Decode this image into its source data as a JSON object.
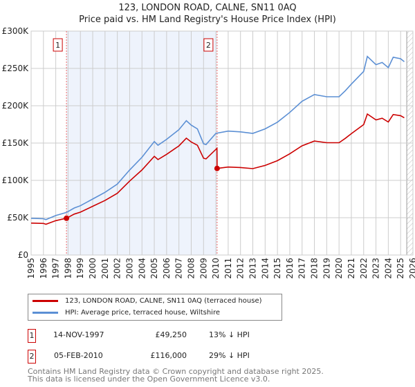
{
  "header": {
    "title": "123, LONDON ROAD, CALNE, SN11 0AQ",
    "subtitle": "Price paid vs. HM Land Registry's House Price Index (HPI)"
  },
  "chart_data": {
    "type": "line",
    "title": "123, LONDON ROAD, CALNE, SN11 0AQ",
    "subtitle": "Price paid vs. HM Land Registry's House Price Index (HPI)",
    "xlim": [
      1995,
      2026
    ],
    "ylim": [
      0,
      300000
    ],
    "x_ticks": [
      1995,
      1996,
      1997,
      1998,
      1999,
      2000,
      2001,
      2002,
      2003,
      2004,
      2005,
      2006,
      2007,
      2008,
      2009,
      2010,
      2011,
      2012,
      2013,
      2014,
      2015,
      2016,
      2017,
      2018,
      2019,
      2020,
      2021,
      2022,
      2023,
      2024,
      2025,
      2026
    ],
    "y_ticks": [
      {
        "v": 0,
        "label": "£0"
      },
      {
        "v": 50000,
        "label": "£50K"
      },
      {
        "v": 100000,
        "label": "£100K"
      },
      {
        "v": 150000,
        "label": "£150K"
      },
      {
        "v": 200000,
        "label": "£200K"
      },
      {
        "v": 250000,
        "label": "£250K"
      },
      {
        "v": 300000,
        "label": "£300K"
      }
    ],
    "grid": true,
    "series": [
      {
        "name": "123, LONDON ROAD, CALNE, SN11 0AQ (terraced house)",
        "color": "#cc0000",
        "x": [
          1995,
          1996,
          1996.2,
          1997,
          1997.87,
          1998.5,
          1999,
          2000,
          2001,
          2002,
          2003,
          2004,
          2005,
          2005.3,
          2006,
          2007,
          2007.6,
          2008,
          2008.5,
          2009,
          2009.2,
          2010.09,
          2010.1,
          2011,
          2012,
          2013,
          2014,
          2015,
          2016,
          2017,
          2018,
          2019,
          2020,
          2020.5,
          2021,
          2022,
          2022.3,
          2023,
          2023.5,
          2024,
          2024.4,
          2025,
          2025.3
        ],
        "y": [
          42800,
          42300,
          41200,
          46000,
          49250,
          54800,
          57400,
          65300,
          73100,
          82700,
          99200,
          114000,
          132200,
          127900,
          134900,
          146200,
          156600,
          151400,
          147000,
          129600,
          128800,
          143000,
          116000,
          117900,
          117200,
          115700,
          120000,
          126400,
          135600,
          146300,
          152700,
          150500,
          150500,
          156200,
          162600,
          174700,
          188900,
          181000,
          183200,
          178200,
          188200,
          186700,
          183900
        ]
      },
      {
        "name": "HPI: Average price, terraced house, Wiltshire",
        "color": "#5b8fd4",
        "x": [
          1995,
          1996,
          1996.2,
          1997,
          1997.87,
          1998.5,
          1999,
          2000,
          2001,
          2002,
          2003,
          2004,
          2005,
          2005.3,
          2006,
          2007,
          2007.6,
          2008,
          2008.5,
          2009,
          2009.2,
          2010,
          2011,
          2012,
          2013,
          2014,
          2015,
          2016,
          2017,
          2018,
          2019,
          2020,
          2020.5,
          2021,
          2022,
          2022.3,
          2023,
          2023.5,
          2024,
          2024.4,
          2025,
          2025.3
        ],
        "y": [
          49200,
          48600,
          47400,
          52900,
          57000,
          63000,
          66000,
          75000,
          84000,
          95000,
          114000,
          131000,
          152000,
          147000,
          155000,
          168000,
          180000,
          174000,
          169000,
          149000,
          148000,
          163000,
          166000,
          165000,
          163000,
          169000,
          178000,
          191000,
          206000,
          215000,
          212000,
          212000,
          220000,
          229000,
          246000,
          266000,
          255000,
          258000,
          251000,
          265000,
          263000,
          259000
        ]
      }
    ],
    "sales": [
      {
        "label": "1",
        "x": 1997.87,
        "y": 49250
      },
      {
        "label": "2",
        "x": 2010.1,
        "y": 116000
      }
    ],
    "shaded_range": [
      1997.87,
      2010.1
    ],
    "hatched_from": 2025.5
  },
  "legend": {
    "items": [
      "123, LONDON ROAD, CALNE, SN11 0AQ (terraced house)",
      "HPI: Average price, terraced house, Wiltshire"
    ]
  },
  "transactions": [
    {
      "num": "1",
      "date": "14-NOV-1997",
      "price": "£49,250",
      "hpi": "13% ↓ HPI"
    },
    {
      "num": "2",
      "date": "05-FEB-2010",
      "price": "£116,000",
      "hpi": "29% ↓ HPI"
    }
  ],
  "footer": {
    "line1": "Contains HM Land Registry data © Crown copyright and database right 2025.",
    "line2": "This data is licensed under the Open Government Licence v3.0."
  }
}
